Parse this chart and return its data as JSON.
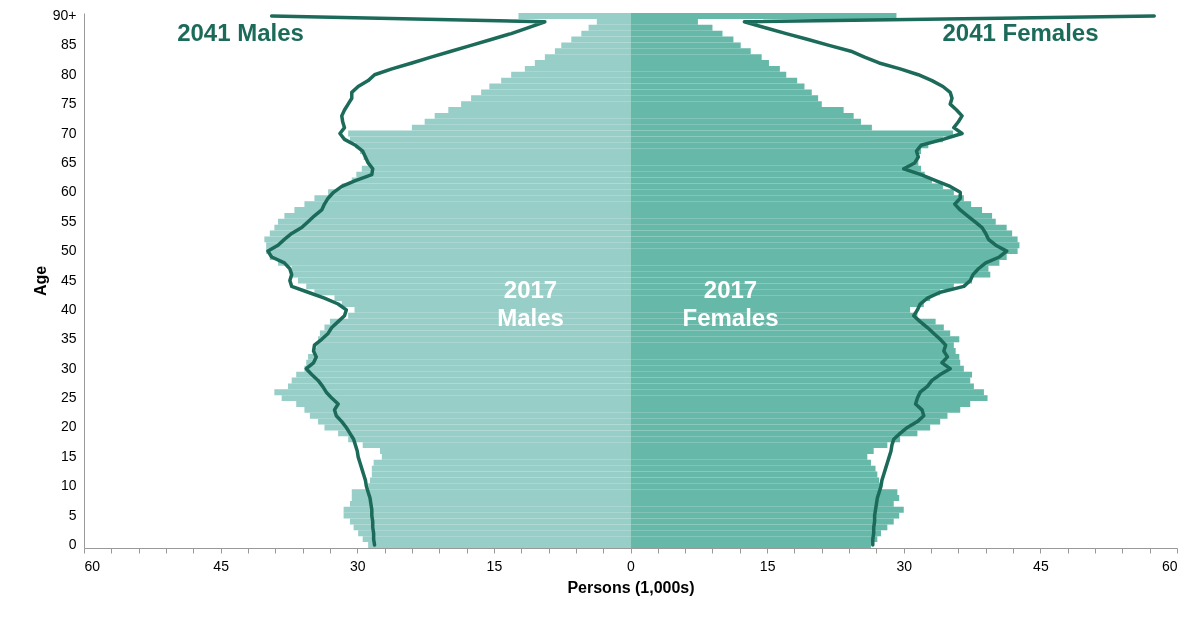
{
  "chart_data": {
    "type": "bar",
    "orientation": "horizontal",
    "xlabel": "Persons (1,000s)",
    "ylabel": "Age",
    "categories": [
      "90+",
      null,
      null,
      null,
      null,
      "85",
      null,
      null,
      null,
      null,
      "80",
      null,
      null,
      null,
      null,
      "75",
      null,
      null,
      null,
      null,
      "70",
      null,
      null,
      null,
      null,
      "65",
      null,
      null,
      null,
      null,
      "60",
      null,
      null,
      null,
      null,
      "55",
      null,
      null,
      null,
      null,
      "50",
      null,
      null,
      null,
      null,
      "45",
      null,
      null,
      null,
      null,
      "40",
      null,
      null,
      null,
      null,
      "35",
      null,
      null,
      null,
      null,
      "30",
      null,
      null,
      null,
      null,
      "25",
      null,
      null,
      null,
      null,
      "20",
      null,
      null,
      null,
      null,
      "15",
      null,
      null,
      null,
      null,
      "10",
      null,
      null,
      null,
      null,
      "5",
      null,
      null,
      null,
      null,
      "0"
    ],
    "xlim": [
      -60,
      60
    ],
    "xticks": [
      {
        "value": -60,
        "label": "60"
      },
      {
        "value": -57,
        "label": null
      },
      {
        "value": -54,
        "label": null
      },
      {
        "value": -51,
        "label": null
      },
      {
        "value": -48,
        "label": null
      },
      {
        "value": -45,
        "label": "45"
      },
      {
        "value": -42,
        "label": null
      },
      {
        "value": -39,
        "label": null
      },
      {
        "value": -36,
        "label": null
      },
      {
        "value": -33,
        "label": null
      },
      {
        "value": -30,
        "label": "30"
      },
      {
        "value": -27,
        "label": null
      },
      {
        "value": -24,
        "label": null
      },
      {
        "value": -21,
        "label": null
      },
      {
        "value": -18,
        "label": null
      },
      {
        "value": -15,
        "label": "15"
      },
      {
        "value": -12,
        "label": null
      },
      {
        "value": -9,
        "label": null
      },
      {
        "value": -6,
        "label": null
      },
      {
        "value": -3,
        "label": null
      },
      0,
      {
        "value": 3,
        "label": null
      },
      {
        "value": 6,
        "label": null
      },
      {
        "value": 9,
        "label": null
      },
      {
        "value": 12,
        "label": null
      },
      15,
      {
        "value": 18,
        "label": null
      },
      {
        "value": 21,
        "label": null
      },
      {
        "value": 24,
        "label": null
      },
      {
        "value": 27,
        "label": null
      },
      30,
      {
        "value": 33,
        "label": null
      },
      {
        "value": 36,
        "label": null
      },
      {
        "value": 39,
        "label": null
      },
      {
        "value": 42,
        "label": null
      },
      45,
      {
        "value": 48,
        "label": null
      },
      {
        "value": 51,
        "label": null
      },
      {
        "value": 54,
        "label": null
      },
      {
        "value": 57,
        "label": null
      },
      60
    ],
    "grid": false,
    "legend": false,
    "stacked": true,
    "series": [
      {
        "name": "2017 Males",
        "type": "bar",
        "color": "#97cec7",
        "values": [
          -12.3,
          -3.7,
          -4.6,
          -5.4,
          -6.5,
          -7.6,
          -8.3,
          -9.4,
          -10.5,
          -11.6,
          -13.1,
          -14.2,
          -15.5,
          -16.4,
          -17.5,
          -18.6,
          -20.0,
          -21.5,
          -22.6,
          -24.0,
          -31.0,
          -30.8,
          -30.2,
          -29.7,
          -29.3,
          -28.8,
          -29.5,
          -30.1,
          -30.6,
          -31.7,
          -33.2,
          -34.7,
          -35.8,
          -36.9,
          -38.0,
          -38.7,
          -39.1,
          -39.6,
          -40.2,
          -40.0,
          -40.0,
          -39.6,
          -38.7,
          -37.2,
          -37.2,
          -36.5,
          -35.6,
          -34.7,
          -32.5,
          -31.7,
          -30.3,
          -31.0,
          -33.0,
          -33.6,
          -34.1,
          -34.3,
          -34.5,
          -34.8,
          -35.4,
          -35.6,
          -35.8,
          -36.7,
          -37.2,
          -37.6,
          -39.1,
          -38.3,
          -36.7,
          -35.8,
          -35.2,
          -34.3,
          -33.6,
          -32.1,
          -31.0,
          -29.4,
          -27.5,
          -27.3,
          -28.2,
          -28.4,
          -28.4,
          -28.6,
          -28.8,
          -30.6,
          -30.6,
          -30.8,
          -31.5,
          -31.5,
          -30.8,
          -30.4,
          -29.9,
          -29.4,
          -28.8
        ]
      },
      {
        "name": "2017 Females",
        "type": "bar",
        "color": "#66b8a8",
        "values": [
          29.2,
          7.4,
          9.0,
          10.1,
          11.3,
          12.1,
          13.2,
          14.4,
          15.2,
          16.4,
          17.1,
          18.3,
          19.1,
          19.9,
          20.6,
          21.0,
          23.4,
          24.5,
          25.3,
          26.5,
          35.4,
          34.3,
          32.7,
          31.9,
          31.6,
          31.6,
          31.9,
          32.3,
          33.1,
          34.3,
          35.5,
          36.6,
          37.4,
          38.6,
          39.7,
          40.1,
          41.3,
          41.9,
          42.5,
          42.7,
          42.5,
          41.3,
          40.5,
          39.3,
          39.5,
          37.5,
          35.5,
          34.0,
          32.9,
          32.2,
          30.7,
          31.5,
          33.5,
          34.4,
          35.1,
          36.1,
          35.5,
          35.7,
          36.1,
          36.2,
          36.6,
          37.5,
          37.3,
          37.7,
          38.8,
          39.2,
          37.3,
          36.2,
          34.8,
          34.0,
          32.9,
          31.5,
          29.6,
          28.2,
          26.7,
          26.0,
          26.4,
          26.9,
          27.1,
          27.3,
          27.6,
          29.3,
          29.5,
          28.9,
          30.0,
          29.5,
          28.9,
          28.2,
          27.5,
          27.1,
          26.4
        ]
      },
      {
        "name": "2041 Males",
        "type": "line",
        "color": "#1c6b5a",
        "values": [
          -39.4,
          -9.4,
          -11.2,
          -13.1,
          -15.3,
          -17.5,
          -19.7,
          -21.9,
          -24.0,
          -26.2,
          -28.1,
          -28.8,
          -29.9,
          -30.6,
          -30.6,
          -31.0,
          -31.4,
          -31.7,
          -31.6,
          -31.4,
          -31.9,
          -31.4,
          -30.2,
          -29.4,
          -29.1,
          -28.8,
          -28.3,
          -28.4,
          -30.2,
          -31.7,
          -32.6,
          -33.2,
          -33.6,
          -33.9,
          -34.7,
          -35.4,
          -36.1,
          -37.2,
          -38.0,
          -38.7,
          -39.8,
          -39.4,
          -38.0,
          -37.4,
          -37.2,
          -37.4,
          -37.2,
          -35.4,
          -33.6,
          -32.1,
          -31.2,
          -31.4,
          -32.1,
          -32.8,
          -33.2,
          -33.9,
          -34.7,
          -34.8,
          -34.5,
          -34.8,
          -35.6,
          -35.0,
          -34.3,
          -33.8,
          -33.4,
          -32.8,
          -32.1,
          -32.5,
          -32.3,
          -31.7,
          -31.2,
          -30.8,
          -30.4,
          -30.2,
          -30.0,
          -29.9,
          -29.7,
          -29.5,
          -29.3,
          -29.1,
          -29.0,
          -28.8,
          -28.6,
          -28.5,
          -28.4,
          -28.4,
          -28.3,
          -28.3,
          -28.2,
          -28.2,
          -28.1
        ]
      },
      {
        "name": "2041 Females",
        "type": "line",
        "color": "#1c6b5a",
        "values": [
          57.5,
          12.5,
          14.8,
          17.1,
          19.5,
          21.8,
          24.2,
          25.7,
          27.3,
          29.6,
          31.6,
          33.1,
          34.3,
          35.1,
          35.3,
          35.1,
          35.8,
          36.4,
          36.0,
          35.5,
          36.4,
          34.3,
          31.9,
          31.4,
          31.6,
          31.2,
          30.0,
          31.9,
          33.5,
          35.1,
          36.2,
          36.2,
          35.6,
          36.2,
          37.0,
          37.8,
          38.6,
          39.0,
          39.3,
          40.1,
          41.3,
          40.5,
          39.0,
          38.2,
          37.6,
          37.3,
          36.6,
          34.0,
          32.6,
          31.8,
          31.5,
          31.1,
          31.8,
          32.6,
          33.3,
          34.0,
          34.6,
          34.4,
          34.8,
          34.2,
          35.1,
          34.0,
          33.1,
          32.6,
          31.8,
          31.5,
          31.3,
          32.0,
          32.2,
          31.5,
          30.4,
          29.6,
          28.9,
          28.7,
          28.6,
          28.4,
          28.2,
          28.0,
          27.8,
          27.6,
          27.5,
          27.3,
          27.1,
          27.0,
          26.9,
          26.8,
          26.8,
          26.7,
          26.7,
          26.6,
          26.6
        ]
      }
    ]
  }
}
